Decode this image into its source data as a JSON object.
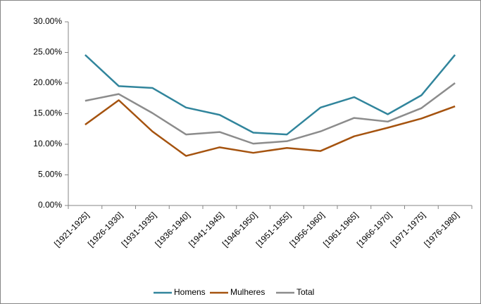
{
  "chart_data": {
    "type": "line",
    "categories": [
      "[1921-1925]",
      "[1926-1930]",
      "[1931-1935]",
      "[1936-1940]",
      "[1941-1945]",
      "[1946-1950]",
      "[1951-1955]",
      "[1956-1960]",
      "[1961-1965]",
      "[1966-1970]",
      "[1971-1975]",
      "[1976-1980]"
    ],
    "series": [
      {
        "name": "Homens",
        "color": "#31859c",
        "values": [
          24.6,
          19.5,
          19.2,
          16.0,
          14.8,
          11.9,
          11.6,
          16.0,
          17.7,
          14.9,
          18.0,
          24.6
        ]
      },
      {
        "name": "Mulheres",
        "color": "#a5530f",
        "values": [
          13.2,
          17.2,
          12.1,
          8.1,
          9.5,
          8.6,
          9.4,
          8.9,
          11.3,
          12.7,
          14.2,
          16.2
        ]
      },
      {
        "name": "Total",
        "color": "#8c8c8c",
        "values": [
          17.1,
          18.2,
          15.1,
          11.6,
          12.0,
          10.1,
          10.5,
          12.1,
          14.3,
          13.7,
          15.9,
          20.0
        ]
      }
    ],
    "ylim": [
      0,
      30
    ],
    "yticks": [
      {
        "value": 0,
        "label": "0.00%"
      },
      {
        "value": 5,
        "label": "5.00%"
      },
      {
        "value": 10,
        "label": "10.00%"
      },
      {
        "value": 15,
        "label": "15.00%"
      },
      {
        "value": 20,
        "label": "20.00%"
      },
      {
        "value": 25,
        "label": "25.00%"
      },
      {
        "value": 30,
        "label": "30.00%"
      }
    ],
    "grid": false,
    "legend": "bottom"
  }
}
